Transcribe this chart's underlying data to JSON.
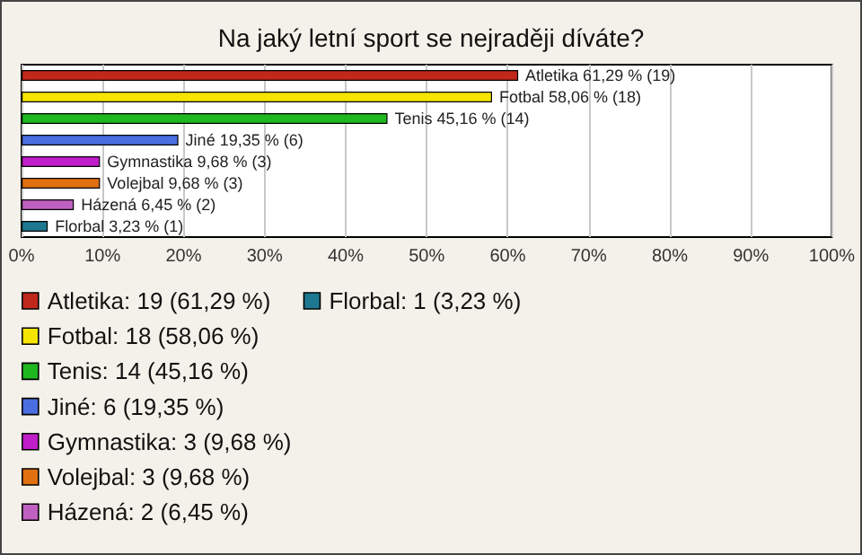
{
  "chart_data": {
    "type": "bar",
    "orientation": "horizontal",
    "title": "Na jaký letní sport se nejraději díváte?",
    "categories": [
      null,
      null,
      null,
      null,
      null,
      null,
      null,
      null
    ],
    "series": [
      {
        "name": "Atletika: 19 (61,29 %)",
        "color": "#c0281c",
        "values": [
          61.29,
          null,
          null,
          null,
          null,
          null,
          null,
          null
        ],
        "value_labels": [
          "Atletika 61,29 % (19)",
          null,
          null,
          null,
          null,
          null,
          null,
          null
        ]
      },
      {
        "name": "Fotbal: 18 (58,06 %)",
        "color": "#f5e500",
        "values": [
          null,
          58.06,
          null,
          null,
          null,
          null,
          null,
          null
        ],
        "value_labels": [
          null,
          "Fotbal 58,06 % (18)",
          null,
          null,
          null,
          null,
          null,
          null
        ]
      },
      {
        "name": "Tenis: 14 (45,16 %)",
        "color": "#1fb81f",
        "values": [
          null,
          null,
          45.16,
          null,
          null,
          null,
          null,
          null
        ],
        "value_labels": [
          null,
          null,
          "Tenis 45,16 % (14)",
          null,
          null,
          null,
          null,
          null
        ]
      },
      {
        "name": "Jiné: 6 (19,35 %)",
        "color": "#4a6ee0",
        "values": [
          null,
          null,
          null,
          19.35,
          null,
          null,
          null,
          null
        ],
        "value_labels": [
          null,
          null,
          null,
          "Jiné 19,35 % (6)",
          null,
          null,
          null,
          null
        ]
      },
      {
        "name": "Gymnastika: 3 (9,68 %)",
        "color": "#c01ec8",
        "values": [
          null,
          null,
          null,
          null,
          9.68,
          null,
          null,
          null
        ],
        "value_labels": [
          null,
          null,
          null,
          null,
          "Gymnastika 9,68 % (3)",
          null,
          null,
          null
        ]
      },
      {
        "name": "Volejbal: 3 (9,68 %)",
        "color": "#e07010",
        "values": [
          null,
          null,
          null,
          null,
          null,
          9.68,
          null,
          null
        ],
        "value_labels": [
          null,
          null,
          null,
          null,
          null,
          "Volejbal 9,68 % (3)",
          null,
          null
        ]
      },
      {
        "name": "Házená: 2 (6,45 %)",
        "color": "#c060c0",
        "values": [
          null,
          null,
          null,
          null,
          null,
          null,
          6.45,
          null
        ],
        "value_labels": [
          null,
          null,
          null,
          null,
          null,
          null,
          "Házená 6,45 % (2)",
          null
        ]
      },
      {
        "name": "Florbal: 1 (3,23 %)",
        "color": "#1e7890",
        "values": [
          null,
          null,
          null,
          null,
          null,
          null,
          null,
          3.23
        ],
        "value_labels": [
          null,
          null,
          null,
          null,
          null,
          null,
          null,
          "Florbal 3,23 % (1)"
        ]
      }
    ],
    "xlim": [
      0,
      100
    ],
    "xticks": [
      {
        "value": 0,
        "label": "0%"
      },
      {
        "value": 10,
        "label": "10%"
      },
      {
        "value": 20,
        "label": "20%"
      },
      {
        "value": 30,
        "label": "30%"
      },
      {
        "value": 40,
        "label": "40%"
      },
      {
        "value": 50,
        "label": "50%"
      },
      {
        "value": 60,
        "label": "60%"
      },
      {
        "value": 70,
        "label": "70%"
      },
      {
        "value": 80,
        "label": "80%"
      },
      {
        "value": 90,
        "label": "90%"
      },
      {
        "value": 100,
        "label": "100%"
      }
    ],
    "grid": "x",
    "legend": "bottom left"
  }
}
